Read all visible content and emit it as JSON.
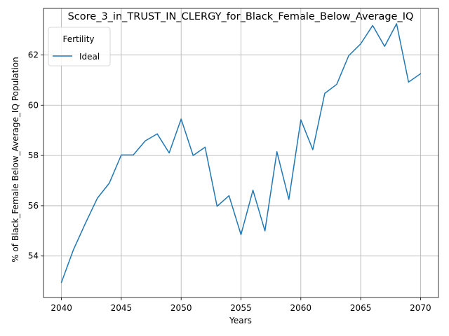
{
  "chart_data": {
    "type": "line",
    "title": "Score_3_in_TRUST_IN_CLERGY_for_Black_Female_Below_Average_IQ",
    "xlabel": "Years",
    "ylabel": "% of Black_Female Below_Average_IQ Population",
    "xlim": [
      2038.5,
      2071.5
    ],
    "ylim": [
      52.35,
      63.85
    ],
    "xticks": [
      2040,
      2045,
      2050,
      2055,
      2060,
      2065,
      2070
    ],
    "yticks": [
      54,
      56,
      58,
      60,
      62
    ],
    "grid": true,
    "legend": {
      "title": "Fertility",
      "placement": "top-left"
    },
    "series": [
      {
        "name": "Ideal",
        "color": "#1f77b4",
        "x": [
          2040,
          2041,
          2042,
          2043,
          2044,
          2045,
          2046,
          2047,
          2048,
          2049,
          2050,
          2051,
          2052,
          2053,
          2054,
          2055,
          2056,
          2057,
          2058,
          2059,
          2060,
          2061,
          2062,
          2063,
          2064,
          2065,
          2066,
          2067,
          2068,
          2069,
          2070
        ],
        "values": [
          52.95,
          54.25,
          55.3,
          56.3,
          56.9,
          58.02,
          58.02,
          58.58,
          58.86,
          58.1,
          59.45,
          58.0,
          58.33,
          55.98,
          56.4,
          54.85,
          56.62,
          55.0,
          58.15,
          56.25,
          59.42,
          58.23,
          60.47,
          60.83,
          61.97,
          62.44,
          63.17,
          62.34,
          63.24,
          60.92,
          61.25
        ]
      }
    ]
  }
}
